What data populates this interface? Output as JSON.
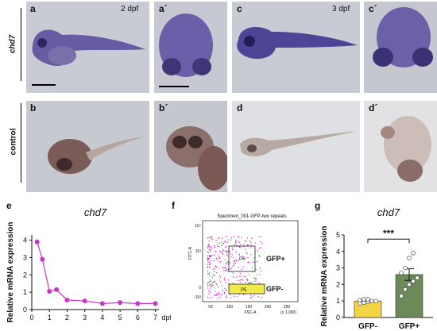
{
  "panels": {
    "a": "a",
    "a_prime": "a´",
    "c": "c",
    "c_prime": "c´",
    "b": "b",
    "b_prime": "b´",
    "d": "d",
    "d_prime": "d´",
    "e": "e",
    "f": "f",
    "g": "g"
  },
  "stages": {
    "day2": "2 dpf",
    "day3": "3 dpf"
  },
  "row_labels": {
    "top": "chd7",
    "bottom": "control"
  },
  "colors": {
    "stain": "#5c4f9e",
    "embryo_bg": "#c9cdd8",
    "magenta": "#cc33cc",
    "yellow_bar": "#f2d444",
    "green_bar": "#6b8a57"
  },
  "chart_data": [
    {
      "type": "line",
      "panel": "e",
      "title": "chd7",
      "xlabel": "dpf",
      "ylabel": "Relative mRNA expression",
      "x": [
        0.3,
        0.6,
        1,
        1.4,
        2,
        3,
        4,
        5,
        6,
        7
      ],
      "y": [
        3.9,
        2.9,
        1.05,
        1.15,
        0.55,
        0.5,
        0.35,
        0.4,
        0.35,
        0.35
      ],
      "xticks": [
        0,
        1,
        2,
        3,
        4,
        5,
        6,
        7
      ],
      "yticks": [
        0,
        1,
        2,
        3,
        4
      ],
      "xlim": [
        0,
        7.2
      ],
      "ylim": [
        0,
        4.3
      ]
    },
    {
      "type": "scatter",
      "panel": "f",
      "title": "Specimen_001-GFP-two repeats",
      "xlabel": "FSC-A",
      "ylabel": "FITC-A",
      "xticks": [
        "50",
        "100",
        "150",
        "200",
        "250"
      ],
      "xunit": "(x 1,000)",
      "yticks": [
        "10⁴",
        "10³",
        "0",
        "-10³"
      ],
      "gates": [
        {
          "name": "P6",
          "label": "GFP+"
        },
        {
          "name": "P5",
          "label": "GFP-"
        }
      ]
    },
    {
      "type": "bar",
      "panel": "g",
      "title": "chd7",
      "ylabel": "Relative mRNA expression",
      "categories": [
        "GFP-",
        "GFP+"
      ],
      "values": [
        1.0,
        2.6
      ],
      "errors": [
        0.08,
        0.35
      ],
      "points": [
        [
          0.85,
          0.9,
          0.95,
          1.0,
          1.0,
          1.05,
          1.1,
          1.1
        ],
        [
          1.3,
          1.7,
          2.0,
          2.2,
          2.4,
          2.7,
          3.0,
          3.6,
          3.9
        ]
      ],
      "yticks": [
        0,
        1,
        2,
        3,
        4,
        5
      ],
      "ylim": [
        0,
        5
      ],
      "significance": "***"
    }
  ]
}
